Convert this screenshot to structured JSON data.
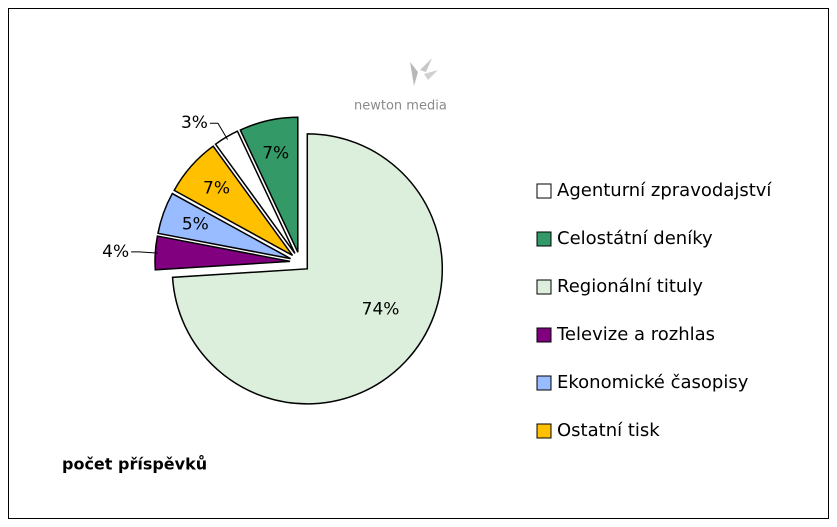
{
  "chart_data": {
    "type": "pie",
    "caption": "počet příspěvků",
    "logo": "newton media",
    "categories": [
      "Agenturní zpravodajství",
      "Celostátní deníky",
      "Regionální tituly",
      "Televize a rozhlas",
      "Ekonomické časopisy",
      "Ostatní tisk"
    ],
    "values": [
      3,
      7,
      74,
      4,
      5,
      7
    ],
    "value_labels": [
      "3%",
      "7%",
      "74%",
      "4%",
      "5%",
      "7%"
    ],
    "colors": [
      "#ffffff",
      "#339966",
      "#dcefdc",
      "#800080",
      "#99bbff",
      "#ffc000"
    ],
    "legend": "right"
  }
}
